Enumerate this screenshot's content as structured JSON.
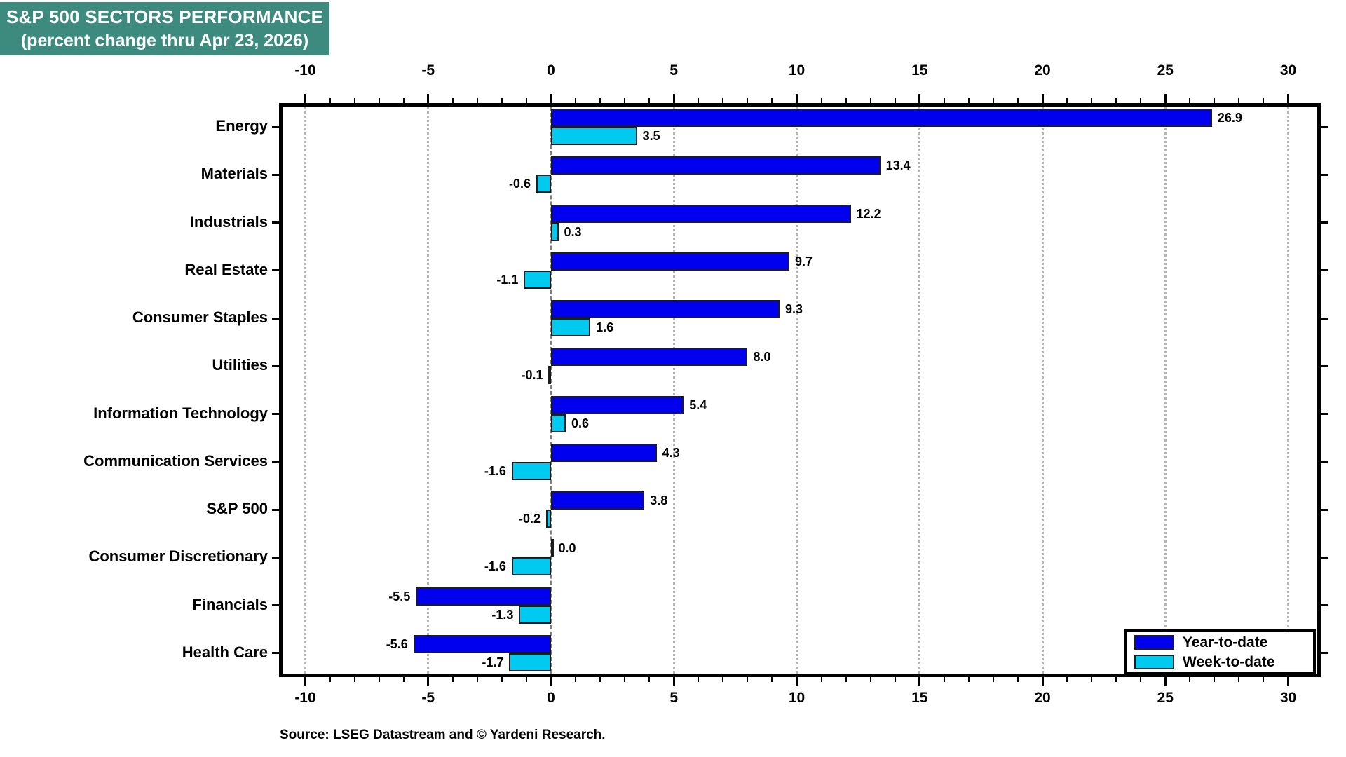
{
  "title": {
    "line1": "S&P 500 SECTORS PERFORMANCE",
    "line2": "(percent change thru Apr 23, 2026)",
    "background_color": "#3D8B7E",
    "text_color": "#FFFFFF"
  },
  "source": "Source: LSEG Datastream and © Yardeni Research.",
  "legend": {
    "position": "bottom-right-inside-plot",
    "items": [
      {
        "label": "Year-to-date",
        "color": "#0000EE"
      },
      {
        "label": "Week-to-date",
        "color": "#00CAF0"
      }
    ]
  },
  "colors": {
    "ytd_bar": "#0000EE",
    "wtd_bar": "#00CAF0",
    "bar_outline": "#1c1c1c",
    "gridline": "#b5b5b5",
    "zero_line": "#7e7e7e",
    "plot_border": "#000000"
  },
  "chart_data": {
    "type": "bar",
    "orientation": "horizontal",
    "title": "S&P 500 SECTORS PERFORMANCE (percent change thru Apr 23, 2026)",
    "xlabel": "",
    "ylabel": "",
    "xlim": [
      -10,
      30
    ],
    "xticks": [
      -10,
      -5,
      0,
      5,
      10,
      15,
      20,
      25,
      30
    ],
    "minor_tick_step": 1,
    "grid": "vertical-dotted",
    "zero_line": "dashed",
    "value_labels": "one-decimal",
    "categories": [
      "Energy",
      "Materials",
      "Industrials",
      "Real Estate",
      "Consumer Staples",
      "Utilities",
      "Information Technology",
      "Communication Services",
      "S&P 500",
      "Consumer Discretionary",
      "Financials",
      "Health Care"
    ],
    "series": [
      {
        "name": "Year-to-date",
        "color": "#0000EE",
        "values": [
          26.9,
          13.4,
          12.2,
          9.7,
          9.3,
          8.0,
          5.4,
          4.3,
          3.8,
          0.0,
          -5.5,
          -5.6
        ]
      },
      {
        "name": "Week-to-date",
        "color": "#00CAF0",
        "values": [
          3.5,
          -0.6,
          0.3,
          -1.1,
          1.6,
          -0.1,
          0.6,
          -1.6,
          -0.2,
          -1.6,
          -1.3,
          -1.7
        ]
      }
    ]
  }
}
